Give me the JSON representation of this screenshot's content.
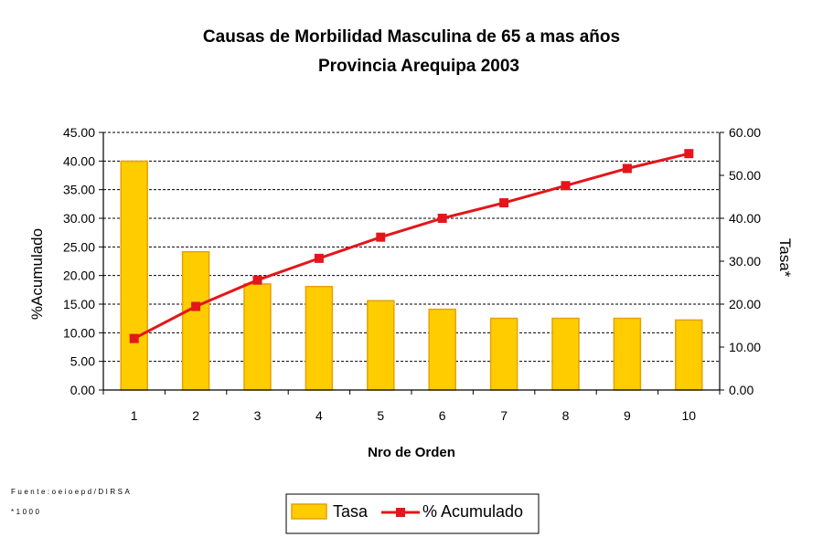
{
  "chart_data": {
    "type": "bar",
    "title": "Causas de Morbilidad Masculina de 65 a mas años",
    "subtitle": "Provincia Arequipa 2003",
    "xlabel": "Nro de Orden",
    "ylabel_left": "%Acumulado",
    "ylabel_right": "Tasa*",
    "categories": [
      "1",
      "2",
      "3",
      "4",
      "5",
      "6",
      "7",
      "8",
      "9",
      "10"
    ],
    "ylim_left": [
      0,
      45
    ],
    "ylim_right": [
      0,
      60
    ],
    "yticks_left": [
      "0.00",
      "5.00",
      "10.00",
      "15.00",
      "20.00",
      "25.00",
      "30.00",
      "35.00",
      "40.00",
      "45.00"
    ],
    "yticks_right": [
      "0.00",
      "10.00",
      "20.00",
      "30.00",
      "40.00",
      "50.00",
      "60.00"
    ],
    "grid": "dashed horizontal",
    "legend_position": "bottom",
    "series": [
      {
        "name": "Tasa",
        "type": "bar",
        "axis": "right",
        "color": "#FFCC00",
        "edge": "#E6A200",
        "values": [
          53.3,
          32.2,
          24.7,
          24.1,
          20.8,
          18.8,
          16.7,
          16.7,
          16.7,
          16.3
        ]
      },
      {
        "name": "% Acumulado",
        "type": "line",
        "axis": "left",
        "color": "#E3161B",
        "values": [
          9.0,
          14.6,
          19.2,
          23.0,
          26.7,
          30.0,
          32.7,
          35.7,
          38.7,
          41.3
        ]
      }
    ]
  },
  "footer": {
    "source": "Fuente:oeioepd/DIRSA",
    "note": "*1000"
  }
}
